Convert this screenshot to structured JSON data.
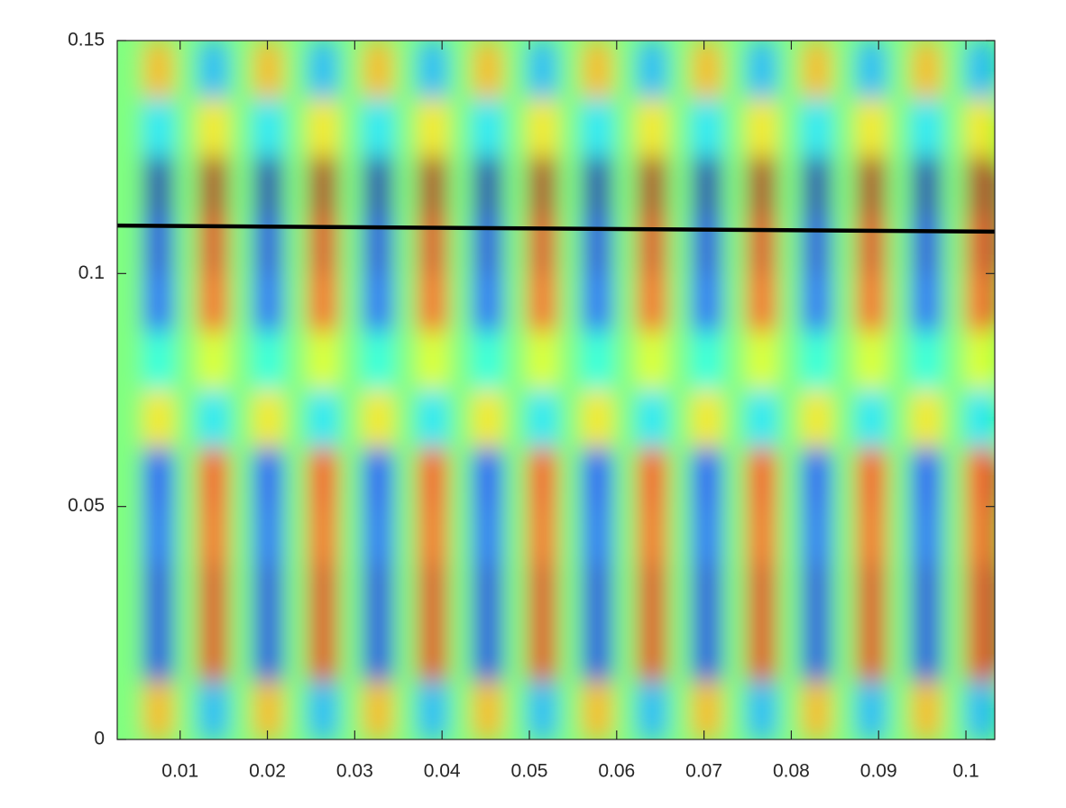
{
  "chart_data": {
    "type": "heatmap",
    "colormap": "jet",
    "clim": [
      -1,
      1
    ],
    "xlim": [
      0.0028,
      0.1033
    ],
    "ylim": [
      0,
      0.15
    ],
    "xticks": [
      0.01,
      0.02,
      0.03,
      0.04,
      0.05,
      0.06,
      0.07,
      0.08,
      0.09,
      0.1
    ],
    "yticks": [
      0,
      0.05,
      0.1,
      0.15
    ],
    "x": [
      0.0044,
      0.0075,
      0.0107,
      0.0138,
      0.017,
      0.0201,
      0.0232,
      0.0264,
      0.0295,
      0.0327,
      0.0358,
      0.0389,
      0.0421,
      0.0452,
      0.0484,
      0.0515,
      0.0546,
      0.0578,
      0.0609,
      0.0641,
      0.0672,
      0.0703,
      0.0735,
      0.0766,
      0.0798,
      0.0829,
      0.086,
      0.0892,
      0.0923,
      0.0955,
      0.0986,
      0.1017
    ],
    "y": [
      0.14375,
      0.13125,
      0.11875,
      0.10625,
      0.09375,
      0.08125,
      0.06875,
      0.05625,
      0.04375,
      0.03125,
      0.01875,
      0.00625
    ],
    "z": [
      [
        0,
        0.4,
        0,
        -0.4,
        0,
        0.4,
        0,
        -0.4,
        0,
        0.4,
        0,
        -0.4,
        0,
        0.4,
        0,
        -0.4,
        0,
        0.4,
        0,
        -0.4,
        0,
        0.4,
        0,
        -0.4,
        0,
        0.4,
        0,
        -0.4,
        0,
        0.4,
        0,
        -0.4
      ],
      [
        0,
        -0.3,
        0,
        0.3,
        0,
        -0.3,
        0,
        0.3,
        0,
        -0.3,
        0,
        0.3,
        0,
        -0.3,
        0,
        0.3,
        0,
        -0.3,
        0,
        0.3,
        0,
        -0.3,
        0,
        0.3,
        0,
        -0.3,
        0,
        0.3,
        0,
        -0.3,
        0,
        0.3
      ],
      [
        0,
        -0.9,
        0,
        0.9,
        0,
        -0.9,
        0,
        0.9,
        0,
        -0.9,
        0,
        0.9,
        0,
        -0.9,
        0,
        0.9,
        0,
        -0.9,
        0,
        0.9,
        0,
        -0.9,
        0,
        0.9,
        0,
        -0.9,
        0,
        0.9,
        0,
        -0.9,
        0,
        0.9
      ],
      [
        0,
        -0.8,
        0,
        0.8,
        0,
        -0.8,
        0,
        0.8,
        0,
        -0.8,
        0,
        0.8,
        0,
        -0.8,
        0,
        0.8,
        0,
        -0.8,
        0,
        0.8,
        0,
        -0.8,
        0,
        0.8,
        0,
        -0.8,
        0,
        0.8,
        0,
        -0.8,
        0,
        0.8
      ],
      [
        0,
        -0.6,
        0,
        0.6,
        0,
        -0.6,
        0,
        0.6,
        0,
        -0.6,
        0,
        0.6,
        0,
        -0.6,
        0,
        0.6,
        0,
        -0.6,
        0,
        0.6,
        0,
        -0.6,
        0,
        0.6,
        0,
        -0.6,
        0,
        0.6,
        0,
        -0.6,
        0,
        0.6
      ],
      [
        0,
        -0.2,
        0,
        0.2,
        0,
        -0.2,
        0,
        0.2,
        0,
        -0.2,
        0,
        0.2,
        0,
        -0.2,
        0,
        0.2,
        0,
        -0.2,
        0,
        0.2,
        0,
        -0.2,
        0,
        0.2,
        0,
        -0.2,
        0,
        0.2,
        0,
        -0.2,
        0,
        0.2
      ],
      [
        0,
        0.3,
        0,
        -0.3,
        0,
        0.3,
        0,
        -0.3,
        0,
        0.3,
        0,
        -0.3,
        0,
        0.3,
        0,
        -0.3,
        0,
        0.3,
        0,
        -0.3,
        0,
        0.3,
        0,
        -0.3,
        0,
        0.3,
        0,
        -0.3,
        0,
        0.3,
        0,
        -0.3
      ],
      [
        0,
        -0.7,
        0,
        0.7,
        0,
        -0.7,
        0,
        0.7,
        0,
        -0.7,
        0,
        0.7,
        0,
        -0.7,
        0,
        0.7,
        0,
        -0.7,
        0,
        0.7,
        0,
        -0.7,
        0,
        0.7,
        0,
        -0.7,
        0,
        0.7,
        0,
        -0.7,
        0,
        0.7
      ],
      [
        0,
        -0.6,
        0,
        0.6,
        0,
        -0.6,
        0,
        0.6,
        0,
        -0.6,
        0,
        0.6,
        0,
        -0.6,
        0,
        0.6,
        0,
        -0.6,
        0,
        0.6,
        0,
        -0.6,
        0,
        0.6,
        0,
        -0.6,
        0,
        0.6,
        0,
        -0.6,
        0,
        0.6
      ],
      [
        0,
        -0.8,
        0,
        0.8,
        0,
        -0.8,
        0,
        0.8,
        0,
        -0.8,
        0,
        0.8,
        0,
        -0.8,
        0,
        0.8,
        0,
        -0.8,
        0,
        0.8,
        0,
        -0.8,
        0,
        0.8,
        0,
        -0.8,
        0,
        0.8,
        0,
        -0.8,
        0,
        0.8
      ],
      [
        0,
        -0.8,
        0,
        0.8,
        0,
        -0.8,
        0,
        0.8,
        0,
        -0.8,
        0,
        0.8,
        0,
        -0.8,
        0,
        0.8,
        0,
        -0.8,
        0,
        0.8,
        0,
        -0.8,
        0,
        0.8,
        0,
        -0.8,
        0,
        0.8,
        0,
        -0.8,
        0,
        0.8
      ],
      [
        0,
        0.4,
        0,
        -0.4,
        0,
        0.4,
        0,
        -0.4,
        0,
        0.4,
        0,
        -0.4,
        0,
        0.4,
        0,
        -0.4,
        0,
        0.4,
        0,
        -0.4,
        0,
        0.4,
        0,
        -0.4,
        0,
        0.4,
        0,
        -0.4,
        0,
        0.4,
        0,
        -0.4
      ]
    ],
    "line": {
      "x": [
        0.0028,
        0.1033
      ],
      "y": [
        0.1103,
        0.109
      ],
      "color": "#000000"
    }
  }
}
